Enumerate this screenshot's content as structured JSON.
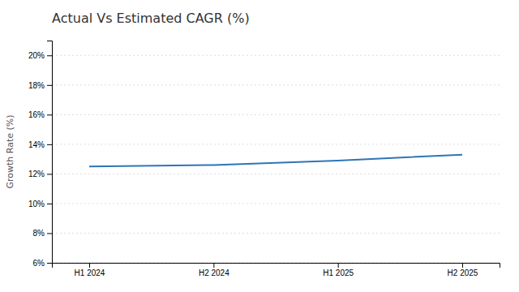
{
  "chart_data": {
    "type": "line",
    "title": "Actual Vs Estimated CAGR (%)",
    "ylabel": "Growth Rate (%)",
    "categories": [
      "H1 2024",
      "H2 2024",
      "H1 2025",
      "H2 2025"
    ],
    "values": [
      12.5,
      12.6,
      12.9,
      13.3
    ],
    "color": "#2E75B6",
    "ylim": [
      6,
      21
    ],
    "yticks": [
      {
        "value": 6,
        "label": "6%"
      },
      {
        "value": 8,
        "label": "8%"
      },
      {
        "value": 10,
        "label": "10%"
      },
      {
        "value": 12,
        "label": "12%"
      },
      {
        "value": 14,
        "label": "14%"
      },
      {
        "value": 16,
        "label": "16%"
      },
      {
        "value": 18,
        "label": "18%"
      },
      {
        "value": 20,
        "label": "20%"
      }
    ],
    "grid": true
  }
}
